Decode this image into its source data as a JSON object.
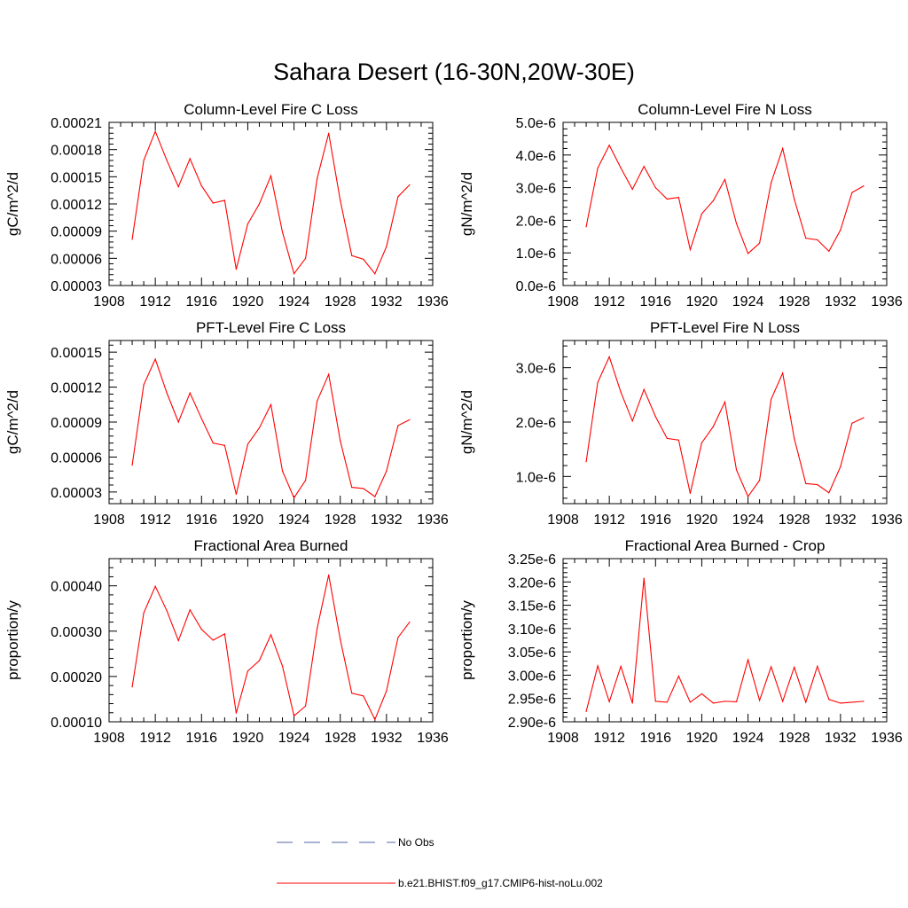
{
  "figure": {
    "title": "Sahara Desert (16-30N,20W-30E)"
  },
  "legend": {
    "items": [
      {
        "label": "No Obs",
        "color": "#5566aa",
        "dashed": true
      },
      {
        "label": "b.e21.BHIST.f09_g17.CMIP6-hist-noLu.002",
        "color": "#ff0000",
        "dashed": false
      }
    ]
  },
  "chart_data": [
    {
      "type": "line",
      "title": "Column-Level Fire C Loss",
      "ylabel": "gC/m^2/d",
      "xlim": [
        1908,
        1936
      ],
      "xticks": [
        1908,
        1912,
        1916,
        1920,
        1924,
        1928,
        1932,
        1936
      ],
      "xtick_labels": [
        "1908",
        "1912",
        "1916",
        "1920",
        "1924",
        "1928",
        "1932",
        "1936"
      ],
      "ylim": [
        3e-05,
        0.00021
      ],
      "yticks": [
        3e-05,
        6e-05,
        9e-05,
        0.00012,
        0.00015,
        0.00018,
        0.00021
      ],
      "ytick_labels": [
        "0.00003",
        "0.00006",
        "0.00009",
        "0.00012",
        "0.00015",
        "0.00018",
        "0.00021"
      ],
      "series": [
        {
          "color": "#ff0000",
          "x": [
            1910,
            1911,
            1912,
            1913,
            1914,
            1915,
            1916,
            1917,
            1918,
            1919,
            1920,
            1921,
            1922,
            1923,
            1924,
            1925,
            1926,
            1927,
            1928,
            1929,
            1930,
            1931,
            1932,
            1933,
            1934
          ],
          "y": [
            8.1e-05,
            0.000168,
            0.0002,
            0.000168,
            0.000139,
            0.00017,
            0.00014,
            0.000121,
            0.000124,
            4.8e-05,
            9.8e-05,
            0.00012,
            0.000151,
            8.9e-05,
            4.3e-05,
            6e-05,
            0.000148,
            0.000198,
            0.000124,
            6.3e-05,
            5.9e-05,
            4.3e-05,
            7.3e-05,
            0.000128,
            0.000141
          ]
        }
      ]
    },
    {
      "type": "line",
      "title": "Column-Level Fire N Loss",
      "ylabel": "gN/m^2/d",
      "xlim": [
        1908,
        1936
      ],
      "xticks": [
        1908,
        1912,
        1916,
        1920,
        1924,
        1928,
        1932,
        1936
      ],
      "xtick_labels": [
        "1908",
        "1912",
        "1916",
        "1920",
        "1924",
        "1928",
        "1932",
        "1936"
      ],
      "ylim": [
        0,
        5e-06
      ],
      "yticks": [
        0,
        1e-06,
        2e-06,
        3e-06,
        4e-06,
        5e-06
      ],
      "ytick_labels": [
        "0.0e-6",
        "1.0e-6",
        "2.0e-6",
        "3.0e-6",
        "4.0e-6",
        "5.0e-6"
      ],
      "series": [
        {
          "color": "#ff0000",
          "x": [
            1910,
            1911,
            1912,
            1913,
            1914,
            1915,
            1916,
            1917,
            1918,
            1919,
            1920,
            1921,
            1922,
            1923,
            1924,
            1925,
            1926,
            1927,
            1928,
            1929,
            1930,
            1931,
            1932,
            1933,
            1934
          ],
          "y": [
            1.8e-06,
            3.6e-06,
            4.3e-06,
            3.6e-06,
            2.95e-06,
            3.65e-06,
            3e-06,
            2.65e-06,
            2.7e-06,
            1.1e-06,
            2.2e-06,
            2.6e-06,
            3.25e-06,
            1.9e-06,
            9.8e-07,
            1.3e-06,
            3.15e-06,
            4.2e-06,
            2.65e-06,
            1.45e-06,
            1.4e-06,
            1.05e-06,
            1.7e-06,
            2.85e-06,
            3.05e-06
          ]
        }
      ]
    },
    {
      "type": "line",
      "title": "PFT-Level Fire C Loss",
      "ylabel": "gC/m^2/d",
      "xlim": [
        1908,
        1936
      ],
      "xticks": [
        1908,
        1912,
        1916,
        1920,
        1924,
        1928,
        1932,
        1936
      ],
      "xtick_labels": [
        "1908",
        "1912",
        "1916",
        "1920",
        "1924",
        "1928",
        "1932",
        "1936"
      ],
      "ylim": [
        2e-05,
        0.00016
      ],
      "yticks": [
        3e-05,
        6e-05,
        9e-05,
        0.00012,
        0.00015
      ],
      "ytick_labels": [
        "0.00003",
        "0.00006",
        "0.00009",
        "0.00012",
        "0.00015"
      ],
      "series": [
        {
          "color": "#ff0000",
          "x": [
            1910,
            1911,
            1912,
            1913,
            1914,
            1915,
            1916,
            1917,
            1918,
            1919,
            1920,
            1921,
            1922,
            1923,
            1924,
            1925,
            1926,
            1927,
            1928,
            1929,
            1930,
            1931,
            1932,
            1933,
            1934
          ],
          "y": [
            5.3e-05,
            0.000122,
            0.000144,
            0.000115,
            9e-05,
            0.000115,
            9.3e-05,
            7.2e-05,
            7e-05,
            2.8e-05,
            7.1e-05,
            8.5e-05,
            0.000105,
            4.8e-05,
            2.5e-05,
            4e-05,
            0.000108,
            0.000131,
            7.4e-05,
            3.4e-05,
            3.3e-05,
            2.6e-05,
            4.8e-05,
            8.7e-05,
            9.2e-05
          ]
        }
      ]
    },
    {
      "type": "line",
      "title": "PFT-Level Fire N Loss",
      "ylabel": "gN/m^2/d",
      "xlim": [
        1908,
        1936
      ],
      "xticks": [
        1908,
        1912,
        1916,
        1920,
        1924,
        1928,
        1932,
        1936
      ],
      "xtick_labels": [
        "1908",
        "1912",
        "1916",
        "1920",
        "1924",
        "1928",
        "1932",
        "1936"
      ],
      "ylim": [
        5e-07,
        3.5e-06
      ],
      "yticks": [
        1e-06,
        2e-06,
        3e-06
      ],
      "ytick_labels": [
        "1.0e-6",
        "2.0e-6",
        "3.0e-6"
      ],
      "series": [
        {
          "color": "#ff0000",
          "x": [
            1910,
            1911,
            1912,
            1913,
            1914,
            1915,
            1916,
            1917,
            1918,
            1919,
            1920,
            1921,
            1922,
            1923,
            1924,
            1925,
            1926,
            1927,
            1928,
            1929,
            1930,
            1931,
            1932,
            1933,
            1934
          ],
          "y": [
            1.27e-06,
            2.73e-06,
            3.2e-06,
            2.55e-06,
            2.02e-06,
            2.6e-06,
            2.1e-06,
            1.7e-06,
            1.67e-06,
            6.9e-07,
            1.62e-06,
            1.92e-06,
            2.37e-06,
            1.12e-06,
            6.3e-07,
            9.3e-07,
            2.42e-06,
            2.9e-06,
            1.7e-06,
            8.7e-07,
            8.5e-07,
            7e-07,
            1.18e-06,
            1.98e-06,
            2.08e-06
          ]
        }
      ]
    },
    {
      "type": "line",
      "title": "Fractional Area Burned",
      "ylabel": "proportion/y",
      "xlim": [
        1908,
        1936
      ],
      "xticks": [
        1908,
        1912,
        1916,
        1920,
        1924,
        1928,
        1932,
        1936
      ],
      "xtick_labels": [
        "1908",
        "1912",
        "1916",
        "1920",
        "1924",
        "1928",
        "1932",
        "1936"
      ],
      "ylim": [
        0.0001,
        0.00046
      ],
      "yticks": [
        0.0001,
        0.0002,
        0.0003,
        0.0004
      ],
      "ytick_labels": [
        "0.00010",
        "0.00020",
        "0.00030",
        "0.00040"
      ],
      "series": [
        {
          "color": "#ff0000",
          "x": [
            1910,
            1911,
            1912,
            1913,
            1914,
            1915,
            1916,
            1917,
            1918,
            1919,
            1920,
            1921,
            1922,
            1923,
            1924,
            1925,
            1926,
            1927,
            1928,
            1929,
            1930,
            1931,
            1932,
            1933,
            1934
          ],
          "y": [
            0.000177,
            0.00034,
            0.000399,
            0.000345,
            0.000279,
            0.000347,
            0.000304,
            0.00028,
            0.000294,
            0.000119,
            0.000212,
            0.000235,
            0.000292,
            0.000223,
            0.000113,
            0.000135,
            0.000306,
            0.000424,
            0.000282,
            0.000163,
            0.000157,
            0.000105,
            0.000168,
            0.000286,
            0.00032
          ]
        }
      ]
    },
    {
      "type": "line",
      "title": "Fractional Area Burned - Crop",
      "ylabel": "proportion/y",
      "xlim": [
        1908,
        1936
      ],
      "xticks": [
        1908,
        1912,
        1916,
        1920,
        1924,
        1928,
        1932,
        1936
      ],
      "xtick_labels": [
        "1908",
        "1912",
        "1916",
        "1920",
        "1924",
        "1928",
        "1932",
        "1936"
      ],
      "ylim": [
        2.9e-06,
        3.25e-06
      ],
      "yticks": [
        2.9e-06,
        2.95e-06,
        3e-06,
        3.05e-06,
        3.1e-06,
        3.15e-06,
        3.2e-06,
        3.25e-06
      ],
      "ytick_labels": [
        "2.90e-6",
        "2.95e-6",
        "3.00e-6",
        "3.05e-6",
        "3.10e-6",
        "3.15e-6",
        "3.20e-6",
        "3.25e-6"
      ],
      "series": [
        {
          "color": "#ff0000",
          "x": [
            1910,
            1911,
            1912,
            1913,
            1914,
            1915,
            1916,
            1917,
            1918,
            1919,
            1920,
            1921,
            1922,
            1923,
            1924,
            1925,
            1926,
            1927,
            1928,
            1929,
            1930,
            1931,
            1932,
            1933,
            1934
          ],
          "y": [
            2.922e-06,
            3.02e-06,
            2.943e-06,
            3.019e-06,
            2.94e-06,
            3.208e-06,
            2.944e-06,
            2.942e-06,
            2.998e-06,
            2.942e-06,
            2.96e-06,
            2.94e-06,
            2.944e-06,
            2.943e-06,
            3.033e-06,
            2.946e-06,
            3.018e-06,
            2.944e-06,
            3.017e-06,
            2.942e-06,
            3.019e-06,
            2.948e-06,
            2.94e-06,
            2.942e-06,
            2.944e-06
          ]
        }
      ]
    }
  ]
}
